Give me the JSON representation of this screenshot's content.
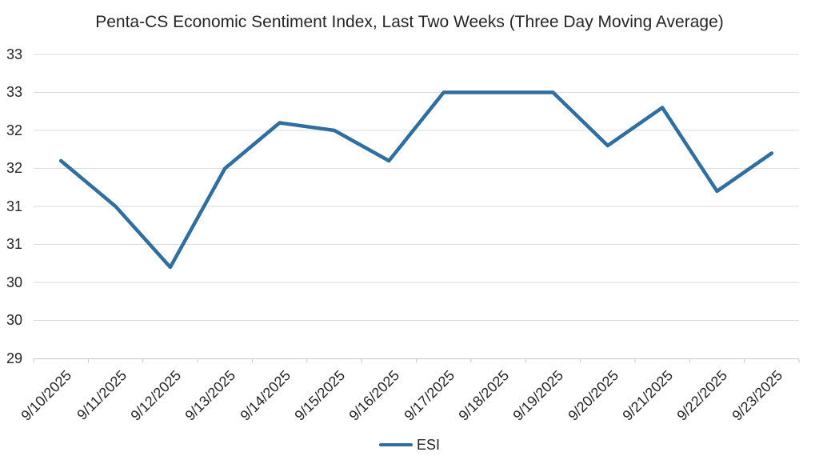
{
  "chart_data": {
    "type": "line",
    "title": "Penta-CS Economic Sentiment Index, Last Two Weeks (Three Day Moving Average)",
    "categories": [
      "9/10/2025",
      "9/11/2025",
      "9/12/2025",
      "9/13/2025",
      "9/14/2025",
      "9/15/2025",
      "9/16/2025",
      "9/17/2025",
      "9/18/2025",
      "9/19/2025",
      "9/20/2025",
      "9/21/2025",
      "9/22/2025",
      "9/23/2025"
    ],
    "series": [
      {
        "name": "ESI",
        "color": "#2F6E9E",
        "values": [
          31.6,
          31.0,
          30.2,
          31.5,
          32.1,
          32.0,
          31.6,
          32.5,
          32.5,
          32.5,
          31.8,
          32.3,
          31.2,
          31.7
        ]
      }
    ],
    "xlabel": "",
    "ylabel": "",
    "ylim": [
      29,
      33
    ],
    "ytick_step": 0.5,
    "ytick_labels_bottom_to_top": [
      "29",
      "30",
      "30",
      "31",
      "31",
      "32",
      "32",
      "33",
      "33"
    ],
    "grid": true,
    "legend_position": "bottom"
  },
  "legend": {
    "items": [
      {
        "label": "ESI",
        "color": "#2F6E9E"
      }
    ]
  },
  "colors": {
    "line": "#2F6E9E",
    "gridline": "#DBDBDB",
    "axis": "#C9C9C9",
    "text": "#262626",
    "background": "#FFFFFF"
  }
}
